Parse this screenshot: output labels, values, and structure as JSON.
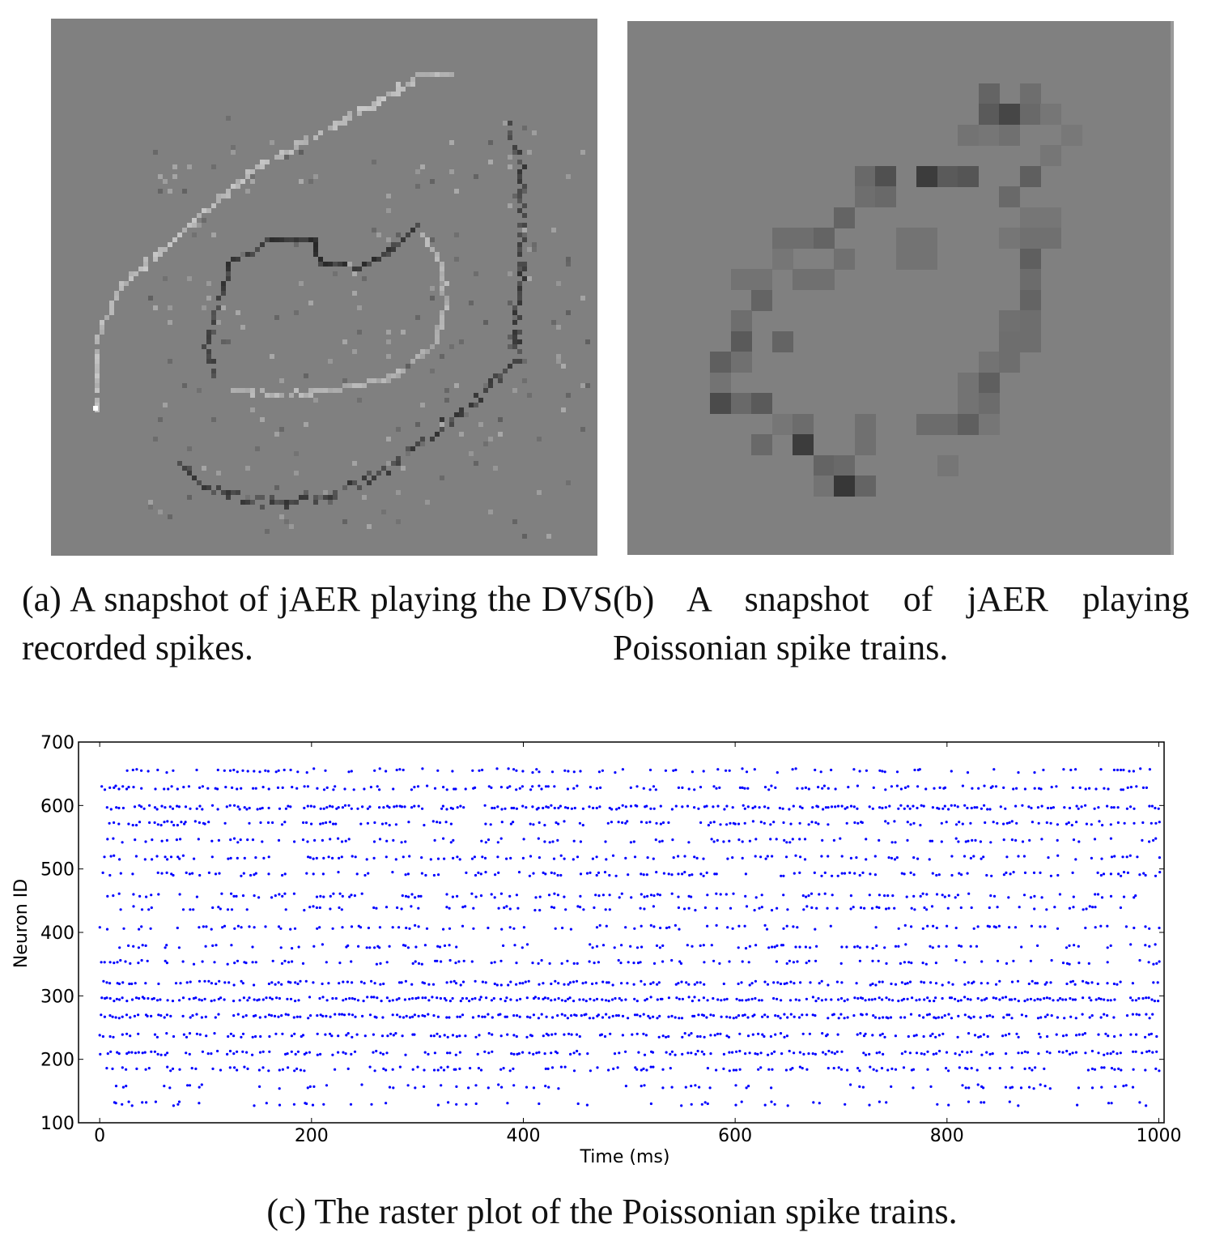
{
  "figure": {
    "panel_a": {
      "caption": "(a) A snapshot of jAER playing the DVS recorded spikes."
    },
    "panel_b": {
      "caption": "(b) A snapshot of jAER playing Poissonian spike trains."
    },
    "panel_c": {
      "caption": "(c) The raster plot of the Poissonian spike trains."
    }
  },
  "colors": {
    "panel_background": "#808080",
    "spike_dot": "#0000ff"
  },
  "chart_data": {
    "type": "scatter",
    "title": "",
    "xlabel": "Time (ms)",
    "ylabel": "Neuron ID",
    "xlim": [
      -20,
      1005
    ],
    "ylim": [
      100,
      700
    ],
    "xticks": [
      0,
      200,
      400,
      600,
      800,
      1000
    ],
    "yticks": [
      100,
      200,
      300,
      400,
      500,
      600,
      700
    ],
    "grid": false,
    "neuron_rows": [
      130,
      157,
      185,
      210,
      238,
      268,
      295,
      320,
      353,
      378,
      408,
      438,
      458,
      492,
      518,
      545,
      572,
      597,
      628,
      655
    ],
    "row_density": [
      0.22,
      0.22,
      0.45,
      0.55,
      0.55,
      0.7,
      0.75,
      0.55,
      0.35,
      0.3,
      0.3,
      0.32,
      0.35,
      0.35,
      0.35,
      0.35,
      0.45,
      0.7,
      0.45,
      0.3
    ],
    "time_range": [
      0,
      1000
    ],
    "series": [
      {
        "values": []
      }
    ]
  }
}
